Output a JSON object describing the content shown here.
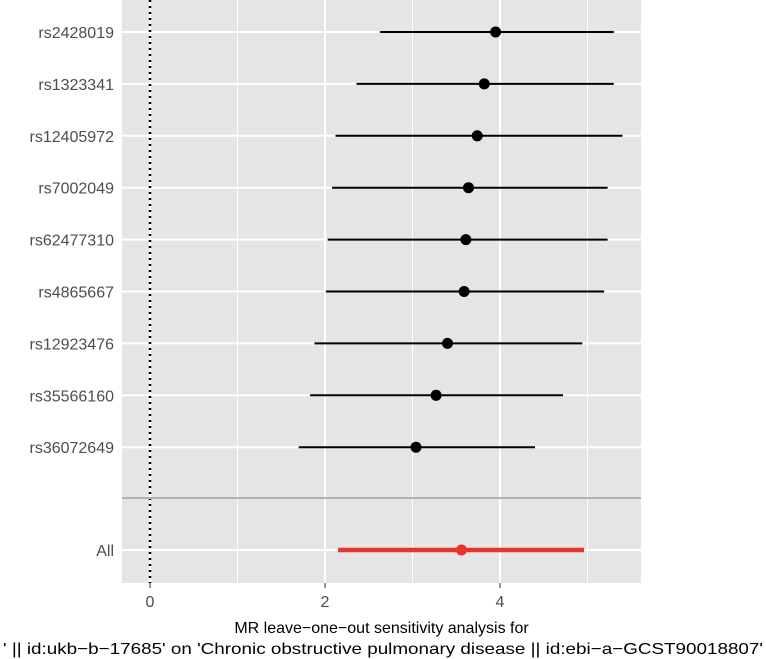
{
  "chart_data": {
    "type": "forest",
    "xlabel_lines": [
      "MR leave−one−out sensitivity analysis for",
      "' || id:ukb−b−17685' on 'Chronic obstructive pulmonary disease || id:ebi−a−GCST90018807'"
    ],
    "ylabel": "",
    "xlim": [
      -0.3,
      5.6
    ],
    "x_ticks": [
      0,
      2,
      4
    ],
    "x_tick_labels": [
      "0",
      "2",
      "4"
    ],
    "reference_line_x": 0,
    "grid": true,
    "colors": {
      "panel": "#e5e5e5",
      "gridline": "#ffffff",
      "point": "#000000",
      "summary": "#e8342a",
      "separator": "#b3b3b3"
    },
    "snps": [
      {
        "label": "rs2428019",
        "estimate": 3.95,
        "lower": 2.63,
        "upper": 5.3
      },
      {
        "label": "rs1323341",
        "estimate": 3.82,
        "lower": 2.36,
        "upper": 5.3
      },
      {
        "label": "rs12405972",
        "estimate": 3.74,
        "lower": 2.12,
        "upper": 5.4
      },
      {
        "label": "rs7002049",
        "estimate": 3.64,
        "lower": 2.08,
        "upper": 5.23
      },
      {
        "label": "rs62477310",
        "estimate": 3.61,
        "lower": 2.03,
        "upper": 5.23
      },
      {
        "label": "rs4865667",
        "estimate": 3.59,
        "lower": 2.01,
        "upper": 5.19
      },
      {
        "label": "rs12923476",
        "estimate": 3.4,
        "lower": 1.88,
        "upper": 4.94
      },
      {
        "label": "rs35566160",
        "estimate": 3.27,
        "lower": 1.83,
        "upper": 4.72
      },
      {
        "label": "rs36072649",
        "estimate": 3.04,
        "lower": 1.7,
        "upper": 4.4
      }
    ],
    "summary": {
      "label": "All",
      "estimate": 3.56,
      "lower": 2.15,
      "upper": 4.96
    }
  }
}
